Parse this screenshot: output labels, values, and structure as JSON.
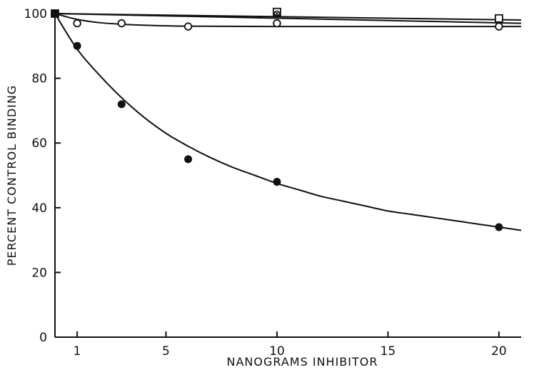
{
  "chart_data": {
    "type": "scatter",
    "title": "",
    "xlabel": "NANOGRAMS INHIBITOR",
    "ylabel": "PERCENT CONTROL BINDING",
    "xlim": [
      0,
      21
    ],
    "ylim": [
      0,
      100
    ],
    "x_ticks": [
      1,
      5,
      10,
      15,
      20
    ],
    "y_ticks": [
      0,
      20,
      40,
      60,
      80,
      100
    ],
    "grid": false,
    "legend": "none",
    "colors": {
      "ink": "#111111",
      "background": "#ffffff"
    },
    "series": [
      {
        "marker": "filled-circle",
        "x": [
          0,
          1,
          3,
          6,
          10,
          20
        ],
        "y": [
          100,
          90,
          72,
          55,
          48,
          34
        ],
        "fit_curve": {
          "x": [
            0,
            1,
            2,
            3,
            4,
            5,
            6,
            7,
            8,
            9,
            10,
            11,
            12,
            13,
            14,
            15,
            16,
            17,
            18,
            19,
            20,
            21
          ],
          "y": [
            100,
            89,
            81,
            74,
            68,
            63,
            59,
            55.5,
            52.5,
            50,
            47.5,
            45.5,
            43.5,
            42,
            40.5,
            39,
            38,
            37,
            36,
            35,
            34,
            33
          ]
        }
      },
      {
        "marker": "open-circle",
        "x": [
          0,
          1,
          3,
          6,
          10,
          20
        ],
        "y": [
          100,
          97,
          97,
          96,
          97,
          96
        ],
        "fit_curve": {
          "x": [
            0,
            1,
            2,
            3,
            4,
            6,
            10,
            15,
            20,
            21
          ],
          "y": [
            100,
            98.2,
            97.2,
            96.7,
            96.4,
            96.1,
            96,
            96,
            96,
            96
          ]
        }
      },
      {
        "marker": "open-square",
        "x": [
          0,
          10,
          20
        ],
        "y": [
          100,
          100.5,
          98.5
        ],
        "fit_curve": {
          "x": [
            0,
            21
          ],
          "y": [
            100,
            98
          ]
        }
      },
      {
        "marker": "crossed-circle",
        "x": [
          0,
          10
        ],
        "y": [
          100,
          100
        ],
        "fit_curve": {
          "x": [
            0,
            21
          ],
          "y": [
            100,
            97
          ]
        }
      }
    ]
  }
}
